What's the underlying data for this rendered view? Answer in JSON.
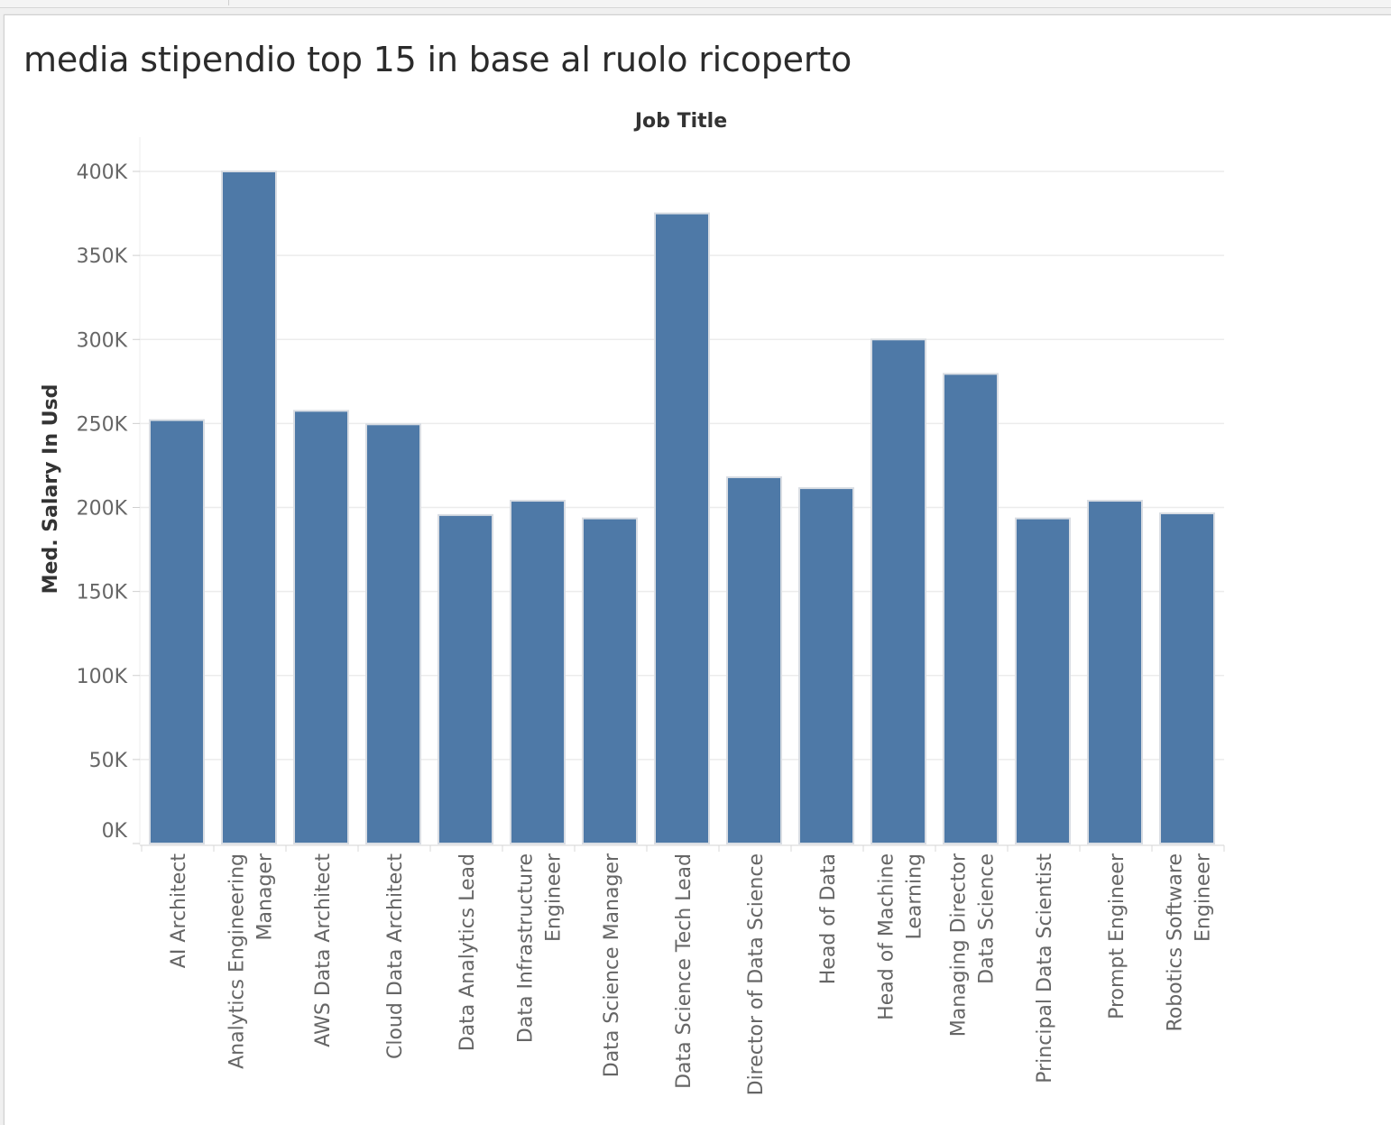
{
  "page": {
    "title": "media stipendio top 15 in base al ruolo ricoperto"
  },
  "chart_data": {
    "type": "bar",
    "xlabel": "Job Title",
    "ylabel": "Med. Salary In Usd",
    "ylim": [
      0,
      400000
    ],
    "yticks": [
      0,
      50000,
      100000,
      150000,
      200000,
      250000,
      300000,
      350000,
      400000
    ],
    "ytick_labels": [
      "0K",
      "50K",
      "100K",
      "150K",
      "200K",
      "250K",
      "300K",
      "350K",
      "400K"
    ],
    "grid": true,
    "bar_color": "#4e79a7",
    "categories": [
      [
        "AI Architect"
      ],
      [
        "Analytics Engineering",
        "Manager"
      ],
      [
        "AWS Data Architect"
      ],
      [
        "Cloud Data Architect"
      ],
      [
        "Data Analytics Lead"
      ],
      [
        "Data Infrastructure",
        "Engineer"
      ],
      [
        "Data Science Manager"
      ],
      [
        "Data Science Tech Lead"
      ],
      [
        "Director of Data Science"
      ],
      [
        "Head of Data"
      ],
      [
        "Head of Machine",
        "Learning"
      ],
      [
        "Managing Director",
        "Data Science"
      ],
      [
        "Principal Data Scientist"
      ],
      [
        "Prompt Engineer"
      ],
      [
        "Robotics Software",
        "Engineer"
      ]
    ],
    "values": [
      252000,
      400000,
      257500,
      249500,
      195500,
      204000,
      193500,
      375000,
      218000,
      211500,
      300000,
      279500,
      193500,
      204000,
      196500
    ]
  }
}
